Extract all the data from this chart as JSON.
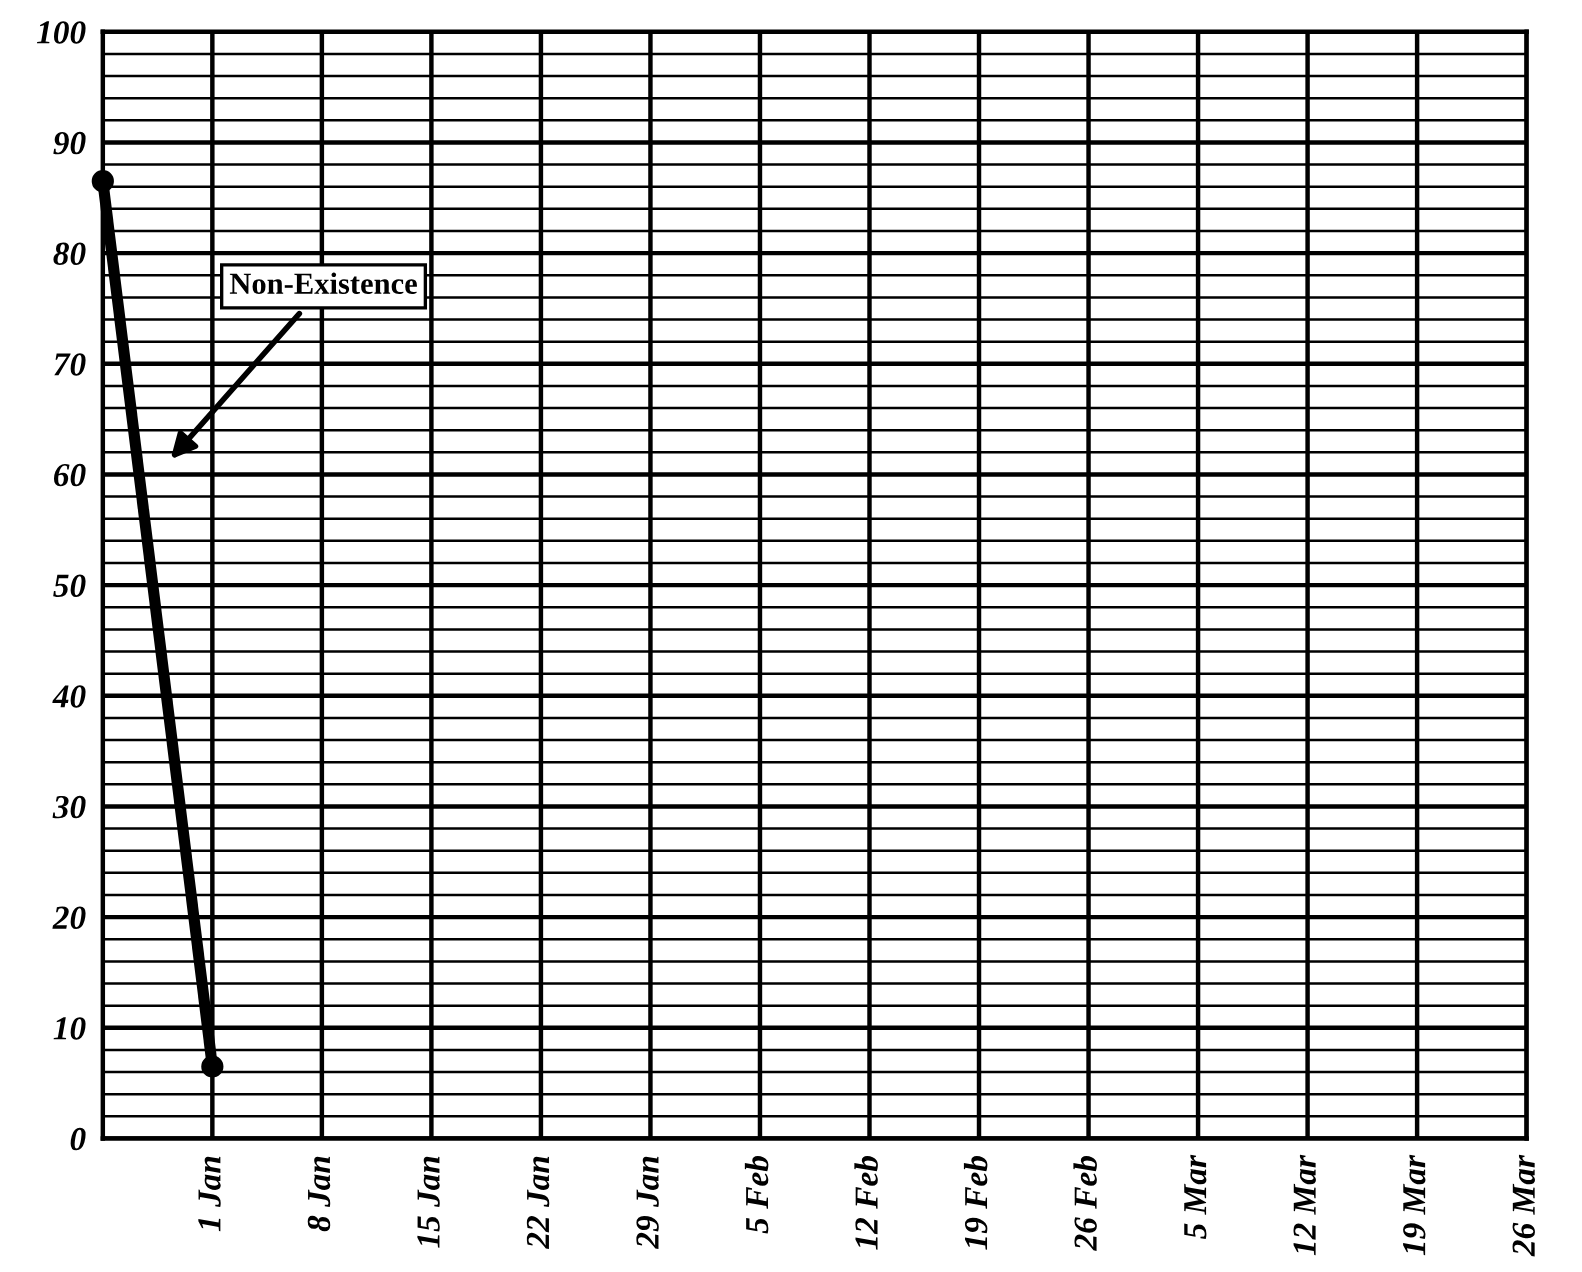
{
  "chart_data": {
    "type": "line",
    "categories": [
      null,
      "1 Jan",
      "8 Jan",
      "15 Jan",
      "22 Jan",
      "29 Jan",
      "5 Feb",
      "12 Feb",
      "19 Feb",
      "26 Feb",
      "5 Mar",
      "12 Mar",
      "19 Mar",
      "26 Mar"
    ],
    "series": [
      {
        "color": "#000000",
        "values": [
          86.5,
          6.5,
          null,
          null,
          null,
          null,
          null,
          null,
          null,
          null,
          null,
          null,
          null,
          null
        ]
      }
    ],
    "ylim": [
      0,
      100
    ],
    "yticks": [
      0,
      10,
      20,
      30,
      40,
      50,
      60,
      70,
      80,
      90,
      100
    ],
    "grid": true,
    "marker": "circle",
    "line_style": "solid",
    "annotations": [
      "Non-Existence"
    ]
  }
}
